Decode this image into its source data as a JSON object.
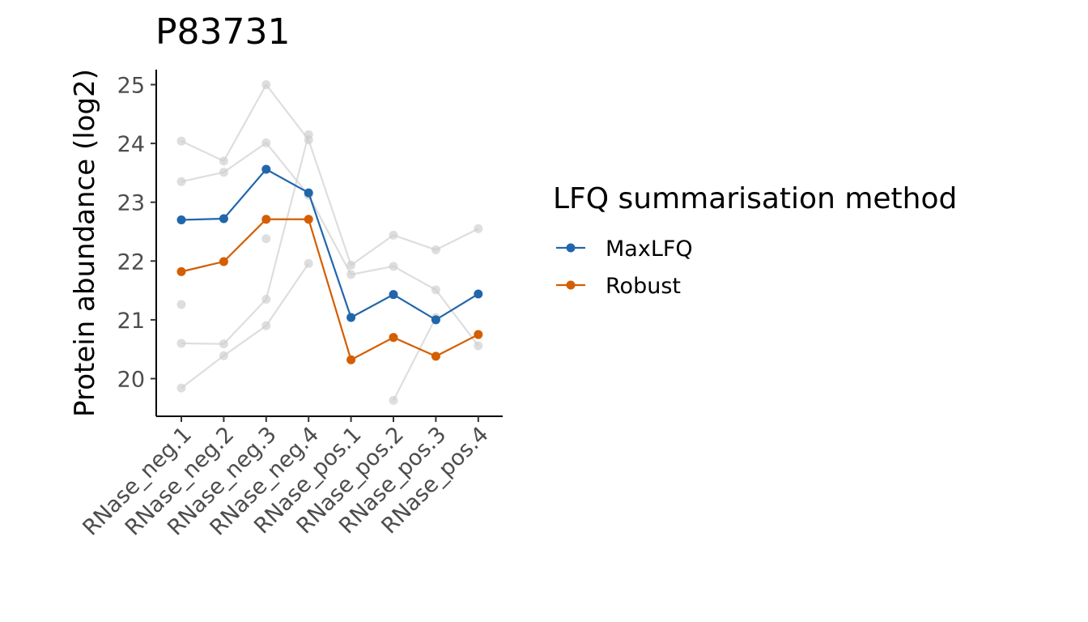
{
  "chart_data": {
    "type": "line",
    "title": "P83731",
    "xlabel": "",
    "ylabel": "Protein abundance (log2)",
    "categories": [
      "RNase_neg.1",
      "RNase_neg.2",
      "RNase_neg.3",
      "RNase_neg.4",
      "RNase_pos.1",
      "RNase_pos.2",
      "RNase_pos.3",
      "RNase_pos.4"
    ],
    "ylim": [
      19.4,
      25.2
    ],
    "yticks": [
      20,
      21,
      22,
      23,
      24,
      25
    ],
    "grid": false,
    "legend": {
      "title": "LFQ summarisation method",
      "position": "right"
    },
    "series": [
      {
        "name": "MaxLFQ",
        "color": "#2166ac",
        "values": [
          22.7,
          22.72,
          23.56,
          23.16,
          21.04,
          21.43,
          21.0,
          21.44
        ]
      },
      {
        "name": "Robust",
        "color": "#d45e00",
        "values": [
          21.82,
          21.99,
          22.71,
          22.71,
          20.32,
          20.7,
          20.38,
          20.75
        ]
      }
    ],
    "background_series": {
      "color": "#cccccc",
      "lines": [
        [
          24.04,
          23.7,
          25.0,
          24.06,
          21.93,
          22.44,
          22.19,
          22.55
        ],
        [
          23.35,
          23.51,
          24.01,
          23.12,
          21.77,
          21.91,
          21.51,
          20.56
        ],
        [
          20.6,
          20.59,
          21.35,
          24.15,
          null,
          19.63,
          21.04,
          null
        ],
        [
          19.84,
          20.39,
          20.9,
          21.96,
          null,
          null,
          null,
          null
        ],
        [
          21.26,
          null,
          22.38,
          null,
          null,
          null,
          null,
          null
        ]
      ]
    }
  }
}
